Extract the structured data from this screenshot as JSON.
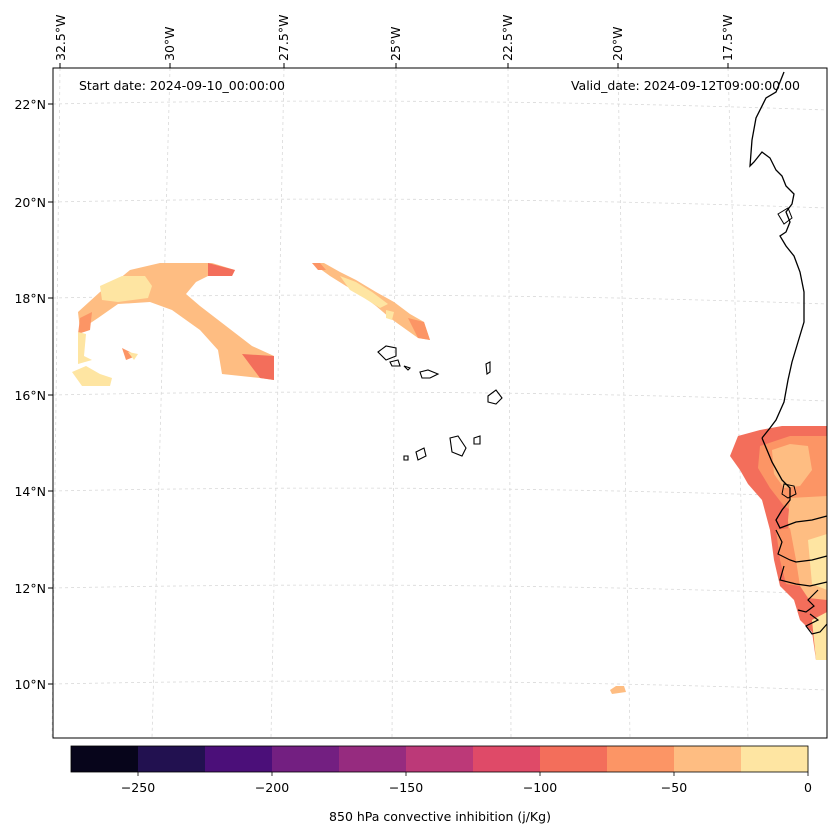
{
  "map": {
    "projection_note": "Lambert-like conic over Cape Verde / West Africa",
    "lon_labels": [
      "32.5°W",
      "30°W",
      "27.5°W",
      "25°W",
      "22.5°W",
      "20°W",
      "17.5°W"
    ],
    "lat_labels": [
      "22°N",
      "20°N",
      "18°N",
      "16°N",
      "14°N",
      "12°N",
      "10°N"
    ],
    "start_date": "Start date: 2024-09-10_00:00:00",
    "valid_date": "Valid_date: 2024-09-12T09:00:00.00"
  },
  "colorbar": {
    "title": "850 hPa convective inhibition (j/Kg)",
    "ticks": [
      "−250",
      "−200",
      "−150",
      "−100",
      "−50",
      "0"
    ],
    "levels": [
      -275,
      -250,
      -225,
      -200,
      -175,
      -150,
      -125,
      -100,
      -75,
      -50,
      -25,
      0
    ],
    "colors": [
      "#07051b",
      "#221150",
      "#4b0f79",
      "#731f81",
      "#962b7f",
      "#bc3978",
      "#df4a68",
      "#f36e5b",
      "#fc9565",
      "#febd82",
      "#fee5a2"
    ]
  },
  "chart_data": {
    "type": "heatmap",
    "title": "850 hPa convective inhibition",
    "variable": "850 hPa convective inhibition (j/Kg)",
    "value_range": [
      -275,
      0
    ],
    "regions": [
      {
        "area": "northwest of Cape Verde (~31.5°W–27°W, 16.5°N–18.5°N)",
        "approx_value_range": [
          -75,
          0
        ]
      },
      {
        "area": "north of Cape Verde (~26°W–23°W, 17°N–18.5°N)",
        "approx_value_range": [
          -75,
          0
        ]
      },
      {
        "area": "Senegal / Gambia coast (~17.5°W–15.5°W, 10.5°N–15°N)",
        "approx_value_range": [
          -100,
          0
        ]
      },
      {
        "area": "south near 20.2°W, 9.8°N",
        "approx_value_range": [
          -25,
          0
        ]
      }
    ]
  }
}
